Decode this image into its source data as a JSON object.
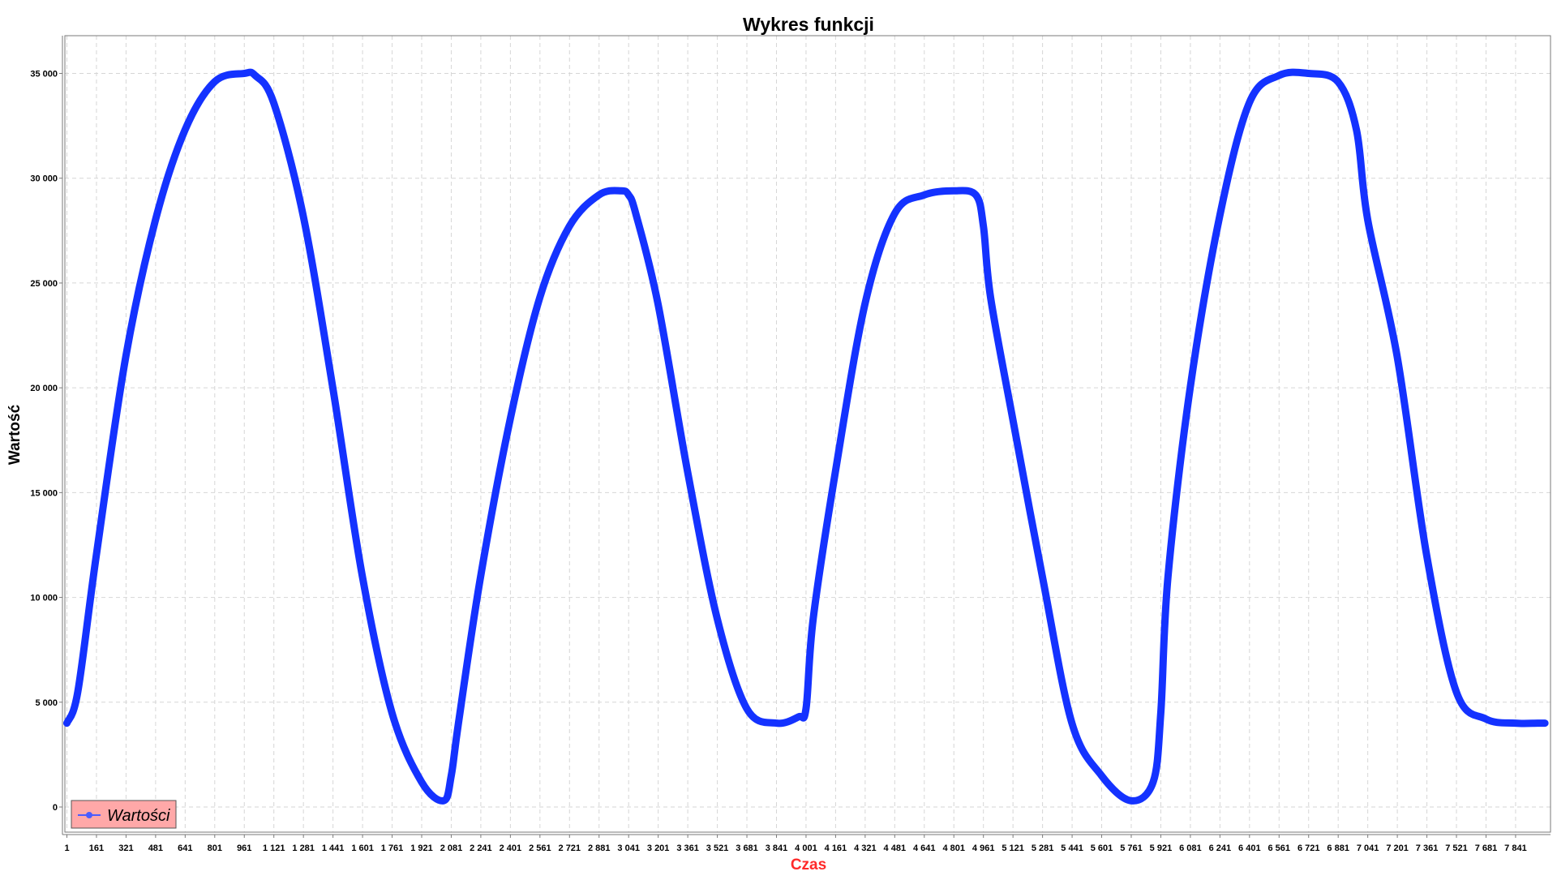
{
  "chart_data": {
    "type": "line",
    "title": "Wykres funkcji",
    "xlabel": "Czas",
    "ylabel": "Wartość",
    "xlim": [
      -10,
      8030
    ],
    "ylim": [
      -1200,
      36800
    ],
    "y_ticks": [
      0,
      5000,
      10000,
      15000,
      20000,
      25000,
      30000,
      35000
    ],
    "y_tick_labels": [
      "0",
      "5 000",
      "10 000",
      "15 000",
      "20 000",
      "25 000",
      "30 000",
      "35 000"
    ],
    "x_tick_labels": [
      "1",
      "161",
      "321",
      "481",
      "641",
      "801",
      "961",
      "1 121",
      "1 281",
      "1 441",
      "1 601",
      "1 761",
      "1 921",
      "2 081",
      "2 241",
      "2 401",
      "2 561",
      "2 721",
      "2 881",
      "3 041",
      "3 201",
      "3 361",
      "3 521",
      "3 681",
      "3 841",
      "4 001",
      "4 161",
      "4 321",
      "4 481",
      "4 641",
      "4 801",
      "4 961",
      "5 121",
      "5 281",
      "5 441",
      "5 601",
      "5 761",
      "5 921",
      "6 081",
      "6 241",
      "6 401",
      "6 561",
      "6 721",
      "6 881",
      "7 041",
      "7 201",
      "7 361",
      "7 521",
      "7 681",
      "7 841"
    ],
    "grid": true,
    "legend_position": "bottom-left",
    "series": [
      {
        "name": "Wartości",
        "color": "#1432ff",
        "x": [
          1,
          60,
          160,
          320,
          480,
          640,
          800,
          960,
          1020,
          1120,
          1280,
          1440,
          1600,
          1760,
          1920,
          2040,
          2081,
          2120,
          2240,
          2400,
          2560,
          2720,
          2880,
          3000,
          3041,
          3080,
          3200,
          3360,
          3520,
          3680,
          3840,
          3960,
          4001,
          4040,
          4160,
          4320,
          4480,
          4640,
          4800,
          4920,
          4961,
          5000,
          5120,
          5280,
          5440,
          5600,
          5760,
          5880,
          5921,
          5960,
          6080,
          6240,
          6400,
          6560,
          6720,
          6880,
          6980,
          7041,
          7200,
          7360,
          7520,
          7680,
          7840,
          7960,
          8000
        ],
        "values": [
          4000,
          5500,
          12000,
          21500,
          28000,
          32300,
          34600,
          35000,
          34900,
          33600,
          28200,
          20000,
          11000,
          4500,
          1200,
          300,
          1500,
          4000,
          11000,
          18500,
          24300,
          27700,
          29200,
          29400,
          29200,
          28300,
          24000,
          16000,
          9000,
          4700,
          4000,
          4300,
          4700,
          9000,
          16000,
          24000,
          28300,
          29200,
          29400,
          29200,
          27700,
          24300,
          18500,
          11000,
          4000,
          1500,
          300,
          1200,
          4500,
          11000,
          20000,
          28200,
          33600,
          34900,
          35000,
          34600,
          32300,
          28000,
          21500,
          12000,
          5500,
          4200,
          4000,
          4000,
          4000
        ]
      }
    ]
  }
}
